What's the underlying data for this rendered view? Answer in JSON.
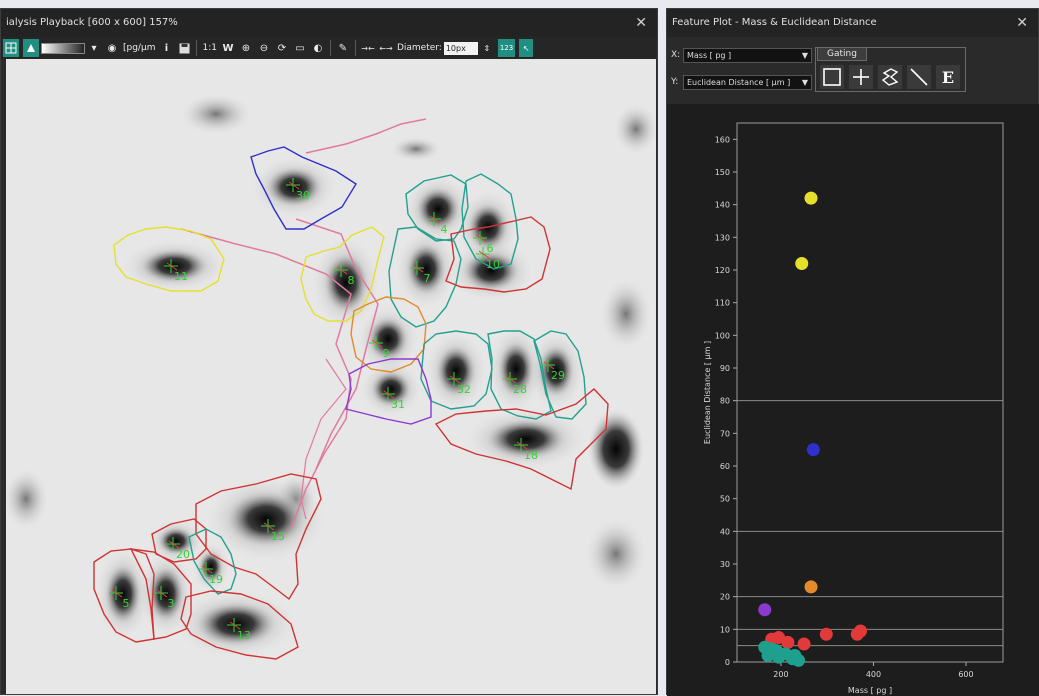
{
  "playback": {
    "title": "ialysis Playback [600 x 600] 157%",
    "close_glyph": "✕",
    "toolbar": {
      "unit_label": "[pg/µm",
      "info_label": "i",
      "zoom_ratio": "1:1",
      "w_label": "W",
      "diameter_label": "Diameter:",
      "diameter_value": "10px",
      "counter_label": "123"
    },
    "cells": [
      {
        "label": "30",
        "color": "#3030c8"
      },
      {
        "label": "11",
        "color": "#e6e02a"
      },
      {
        "label": "8",
        "color": "#e6e02a"
      },
      {
        "label": "4",
        "color": "#23a08f"
      },
      {
        "label": "6",
        "color": "#23a08f"
      },
      {
        "label": "7",
        "color": "#23a08f"
      },
      {
        "label": "10",
        "color": "#cf3333"
      },
      {
        "label": "9",
        "color": "#e38a2a"
      },
      {
        "label": "32",
        "color": "#23a08f"
      },
      {
        "label": "28",
        "color": "#23a08f"
      },
      {
        "label": "29",
        "color": "#23a08f"
      },
      {
        "label": "31",
        "color": "#8b3ad0"
      },
      {
        "label": "18",
        "color": "#cf3333"
      },
      {
        "label": "15",
        "color": "#cf3333"
      },
      {
        "label": "20",
        "color": "#cf3333"
      },
      {
        "label": "19",
        "color": "#23a08f"
      },
      {
        "label": "5",
        "color": "#cf3333"
      },
      {
        "label": "3",
        "color": "#cf3333"
      },
      {
        "label": "13",
        "color": "#cf3333"
      }
    ],
    "colors": {
      "label_text": "#35d435",
      "track": "#e07aa0"
    }
  },
  "featureplot": {
    "title": "Feature Plot - Mass & Euclidean Distance",
    "close_glyph": "✕",
    "x_axis_label": "X:",
    "x_selected": "Mass [ pg ]",
    "y_axis_label": "Y:",
    "y_selected": "Euclidean Distance [ µm ]",
    "gating_label": "Gating",
    "gating_tools": [
      "rectangle-tool",
      "cross-tool",
      "polygon-tool",
      "line-tool",
      "ellipse-tool"
    ],
    "gating_e_label": "E"
  },
  "chart_data": {
    "type": "scatter",
    "xlabel": "Mass [ pg ]",
    "ylabel": "Euclidean Distance [ µm ]",
    "xlim": [
      105,
      680
    ],
    "ylim": [
      0,
      165
    ],
    "xticks": [
      "200",
      "400",
      "600"
    ],
    "yticks": [
      "0",
      "10",
      "20",
      "30",
      "40",
      "50",
      "60",
      "70",
      "80",
      "90",
      "100",
      "110",
      "120",
      "130",
      "140",
      "150",
      "160"
    ],
    "hlines": [
      5,
      10,
      20,
      40,
      80
    ],
    "points": [
      {
        "x": 265,
        "y": 142,
        "color": "#e6e02a"
      },
      {
        "x": 245,
        "y": 122,
        "color": "#e6e02a"
      },
      {
        "x": 270,
        "y": 65,
        "color": "#2f2fd0"
      },
      {
        "x": 265,
        "y": 23,
        "color": "#e38a2a"
      },
      {
        "x": 165,
        "y": 16,
        "color": "#8b3ad0"
      },
      {
        "x": 180,
        "y": 7,
        "color": "#e23a3a"
      },
      {
        "x": 195,
        "y": 7.5,
        "color": "#e23a3a"
      },
      {
        "x": 215,
        "y": 6,
        "color": "#e23a3a"
      },
      {
        "x": 250,
        "y": 5.5,
        "color": "#e23a3a"
      },
      {
        "x": 298,
        "y": 8.5,
        "color": "#e23a3a"
      },
      {
        "x": 365,
        "y": 8.5,
        "color": "#e23a3a"
      },
      {
        "x": 372,
        "y": 9.5,
        "color": "#e23a3a"
      },
      {
        "x": 165,
        "y": 4.5,
        "color": "#1fa08e"
      },
      {
        "x": 178,
        "y": 4,
        "color": "#1fa08e"
      },
      {
        "x": 190,
        "y": 3.5,
        "color": "#1fa08e"
      },
      {
        "x": 172,
        "y": 2,
        "color": "#1fa08e"
      },
      {
        "x": 195,
        "y": 1.5,
        "color": "#1fa08e"
      },
      {
        "x": 210,
        "y": 2.5,
        "color": "#1fa08e"
      },
      {
        "x": 230,
        "y": 2,
        "color": "#1fa08e"
      },
      {
        "x": 238,
        "y": 0.5,
        "color": "#1fa08e"
      },
      {
        "x": 225,
        "y": 1,
        "color": "#1fa08e"
      }
    ]
  }
}
